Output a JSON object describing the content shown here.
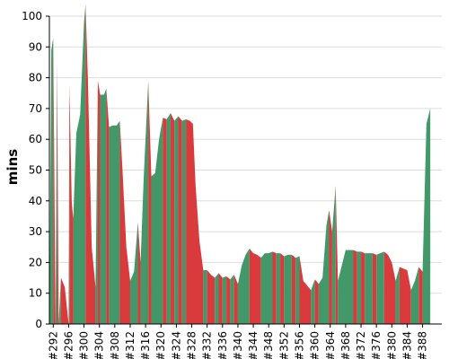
{
  "chart_data": {
    "type": "area",
    "title": "",
    "xlabel": "",
    "ylabel": "mins",
    "ylim": [
      0,
      100
    ],
    "xlim": [
      291,
      393
    ],
    "yticks": [
      0,
      10,
      20,
      30,
      40,
      50,
      60,
      70,
      80,
      90,
      100
    ],
    "xticks": [
      292,
      296,
      300,
      304,
      308,
      312,
      316,
      320,
      324,
      328,
      332,
      336,
      340,
      344,
      348,
      352,
      356,
      360,
      364,
      368,
      372,
      376,
      380,
      384,
      388
    ],
    "xtick_prefix": "#",
    "grid": true,
    "legend": "none",
    "colors": {
      "above": "#43986a",
      "below": "#d93a3b"
    },
    "series": [
      {
        "values": [
          [
            291,
            0
          ],
          [
            291.5,
            89
          ],
          [
            292,
            93
          ],
          [
            292.6,
            0
          ],
          [
            293,
            85
          ],
          [
            293.4,
            0
          ],
          [
            294,
            15
          ],
          [
            295,
            12
          ],
          [
            296,
            0
          ],
          [
            296.2,
            78
          ],
          [
            296.8,
            40
          ],
          [
            297.2,
            34
          ],
          [
            298,
            62
          ],
          [
            299,
            68
          ],
          [
            300,
            98
          ],
          [
            300.4,
            104
          ],
          [
            301,
            80
          ],
          [
            302,
            25
          ],
          [
            303,
            12
          ],
          [
            303.6,
            79
          ],
          [
            304.2,
            74.5
          ],
          [
            305.2,
            74.5
          ],
          [
            305.8,
            76.5
          ],
          [
            306.5,
            64
          ],
          [
            307.5,
            64.5
          ],
          [
            308.5,
            64.5
          ],
          [
            309.3,
            66
          ],
          [
            310,
            50
          ],
          [
            311,
            25
          ],
          [
            312,
            14
          ],
          [
            313,
            17
          ],
          [
            314,
            33
          ],
          [
            314.7,
            20
          ],
          [
            315.5,
            47
          ],
          [
            316.7,
            79
          ],
          [
            317.5,
            48
          ],
          [
            318.5,
            49
          ],
          [
            319.5,
            60
          ],
          [
            320.5,
            67
          ],
          [
            321.5,
            66.5
          ],
          [
            322.5,
            68.5
          ],
          [
            323.5,
            66
          ],
          [
            324.5,
            67.5
          ],
          [
            325.5,
            66
          ],
          [
            326.5,
            66.5
          ],
          [
            327.5,
            66
          ],
          [
            328.3,
            65
          ],
          [
            329,
            45
          ],
          [
            330,
            27
          ],
          [
            331,
            17.5
          ],
          [
            332,
            17.5
          ],
          [
            333,
            16
          ],
          [
            334,
            15
          ],
          [
            335,
            16.5
          ],
          [
            336,
            15
          ],
          [
            337,
            15.5
          ],
          [
            338,
            14.5
          ],
          [
            339,
            16
          ],
          [
            340,
            13
          ],
          [
            341,
            19
          ],
          [
            342,
            22.5
          ],
          [
            343,
            24.5
          ],
          [
            344,
            23
          ],
          [
            345,
            22.5
          ],
          [
            346,
            21.5
          ],
          [
            347,
            23
          ],
          [
            348,
            23
          ],
          [
            349,
            23.5
          ],
          [
            350,
            23
          ],
          [
            351,
            23
          ],
          [
            352,
            22
          ],
          [
            353,
            22.5
          ],
          [
            354,
            22.5
          ],
          [
            355,
            21.5
          ],
          [
            356,
            22
          ],
          [
            357,
            14
          ],
          [
            358,
            12.5
          ],
          [
            359,
            11
          ],
          [
            360,
            14.5
          ],
          [
            361,
            13
          ],
          [
            362,
            15
          ],
          [
            363,
            32
          ],
          [
            363.7,
            37
          ],
          [
            364.5,
            30
          ],
          [
            365.4,
            45
          ],
          [
            366,
            14
          ],
          [
            367,
            19
          ],
          [
            368,
            24
          ],
          [
            369,
            24
          ],
          [
            370,
            24
          ],
          [
            371,
            23.5
          ],
          [
            372,
            23.5
          ],
          [
            373,
            23
          ],
          [
            374,
            23
          ],
          [
            375,
            23
          ],
          [
            376,
            22.5
          ],
          [
            377,
            23
          ],
          [
            378,
            23.5
          ],
          [
            379,
            22.5
          ],
          [
            380,
            20
          ],
          [
            381,
            14
          ],
          [
            382,
            18.5
          ],
          [
            383,
            18
          ],
          [
            384,
            17.5
          ],
          [
            385,
            11
          ],
          [
            386,
            14
          ],
          [
            387,
            18.5
          ],
          [
            388,
            17
          ],
          [
            389,
            65
          ],
          [
            390,
            70
          ]
        ]
      }
    ]
  }
}
